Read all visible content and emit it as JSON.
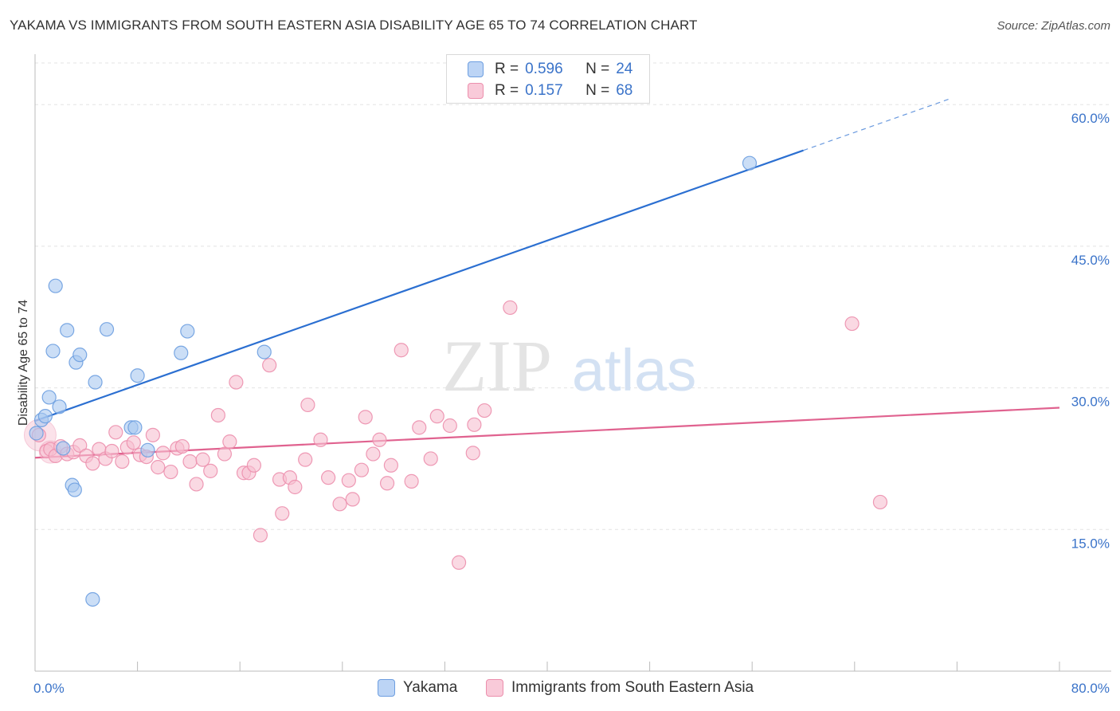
{
  "chart_data": {
    "type": "scatter",
    "title": "YAKAMA VS IMMIGRANTS FROM SOUTH EASTERN ASIA DISABILITY AGE 65 TO 74 CORRELATION CHART",
    "source": "Source: ZipAtlas.com",
    "watermark": {
      "zip": "ZIP",
      "atlas": "atlas"
    },
    "xlabel": "",
    "ylabel": "Disability Age 65 to 74",
    "xlim": [
      0,
      80
    ],
    "ylim": [
      0,
      65
    ],
    "x_tick_labels": [
      "0.0%",
      "80.0%"
    ],
    "y_ticks": [
      15,
      30,
      45,
      60
    ],
    "y_tick_labels": [
      "15.0%",
      "30.0%",
      "45.0%",
      "60.0%"
    ],
    "legend": {
      "series1": {
        "r_label": "R =",
        "r_value": "0.596",
        "n_label": "N =",
        "n_value": "24"
      },
      "series2": {
        "r_label": "R =",
        "r_value": "0.157",
        "n_label": "N =",
        "n_value": "68"
      }
    },
    "series": [
      {
        "name": "Yakama",
        "color": "#a8c8f0",
        "edge": "#6d9ee0",
        "line_color": "#2b6fd1",
        "trend": {
          "x0": 0,
          "y0": 26.5,
          "x1": 80,
          "y1": 64.7,
          "solid_until_x": 60
        },
        "points": [
          [
            0.1,
            25.2
          ],
          [
            0.5,
            26.6
          ],
          [
            0.8,
            27.0
          ],
          [
            1.1,
            29.0
          ],
          [
            1.4,
            33.9
          ],
          [
            1.6,
            40.8
          ],
          [
            1.9,
            28.0
          ],
          [
            2.2,
            23.6
          ],
          [
            2.5,
            36.1
          ],
          [
            2.9,
            19.7
          ],
          [
            3.1,
            19.2
          ],
          [
            3.2,
            32.7
          ],
          [
            3.5,
            33.5
          ],
          [
            4.5,
            7.6
          ],
          [
            4.7,
            30.6
          ],
          [
            5.6,
            36.2
          ],
          [
            7.5,
            25.8
          ],
          [
            7.8,
            25.8
          ],
          [
            8.0,
            31.3
          ],
          [
            8.8,
            23.4
          ],
          [
            11.4,
            33.7
          ],
          [
            11.9,
            36.0
          ],
          [
            17.9,
            33.8
          ],
          [
            55.8,
            53.8
          ]
        ]
      },
      {
        "name": "Immigrants from South Eastern Asia",
        "color": "#f7bfd1",
        "edge": "#ec8fad",
        "line_color": "#e0628f",
        "trend": {
          "x0": 0,
          "y0": 22.6,
          "x1": 80,
          "y1": 27.9
        },
        "points": [
          [
            0.3,
            25.0
          ],
          [
            0.9,
            23.3
          ],
          [
            1.2,
            23.5
          ],
          [
            1.6,
            22.8
          ],
          [
            2.0,
            23.8
          ],
          [
            2.5,
            23.0
          ],
          [
            3.0,
            23.2
          ],
          [
            3.5,
            23.9
          ],
          [
            4.0,
            22.8
          ],
          [
            4.5,
            22.0
          ],
          [
            5.0,
            23.5
          ],
          [
            5.5,
            22.5
          ],
          [
            6.0,
            23.3
          ],
          [
            6.3,
            25.3
          ],
          [
            6.8,
            22.2
          ],
          [
            7.2,
            23.7
          ],
          [
            7.7,
            24.2
          ],
          [
            8.2,
            22.9
          ],
          [
            8.7,
            22.7
          ],
          [
            9.2,
            25.0
          ],
          [
            9.6,
            21.6
          ],
          [
            10.0,
            23.1
          ],
          [
            10.6,
            21.1
          ],
          [
            11.1,
            23.6
          ],
          [
            11.5,
            23.8
          ],
          [
            12.1,
            22.2
          ],
          [
            12.6,
            19.8
          ],
          [
            13.1,
            22.4
          ],
          [
            13.7,
            21.2
          ],
          [
            14.3,
            27.1
          ],
          [
            14.8,
            23.0
          ],
          [
            15.2,
            24.3
          ],
          [
            15.7,
            30.6
          ],
          [
            16.3,
            21.0
          ],
          [
            16.7,
            21.0
          ],
          [
            17.1,
            21.8
          ],
          [
            17.6,
            14.4
          ],
          [
            18.3,
            32.4
          ],
          [
            19.1,
            20.3
          ],
          [
            19.3,
            16.7
          ],
          [
            19.9,
            20.5
          ],
          [
            20.3,
            19.5
          ],
          [
            21.1,
            22.4
          ],
          [
            21.3,
            28.2
          ],
          [
            22.3,
            24.5
          ],
          [
            22.9,
            20.5
          ],
          [
            23.8,
            17.7
          ],
          [
            24.5,
            20.2
          ],
          [
            24.8,
            18.2
          ],
          [
            25.5,
            21.3
          ],
          [
            25.8,
            26.9
          ],
          [
            26.4,
            23.0
          ],
          [
            26.9,
            24.5
          ],
          [
            27.5,
            19.9
          ],
          [
            27.8,
            21.8
          ],
          [
            28.6,
            34.0
          ],
          [
            29.4,
            20.1
          ],
          [
            30.0,
            25.8
          ],
          [
            30.9,
            22.5
          ],
          [
            31.4,
            27.0
          ],
          [
            32.4,
            26.0
          ],
          [
            33.1,
            11.5
          ],
          [
            34.2,
            23.1
          ],
          [
            34.3,
            26.1
          ],
          [
            35.1,
            27.6
          ],
          [
            37.1,
            38.5
          ],
          [
            63.8,
            36.8
          ],
          [
            66.0,
            17.9
          ]
        ]
      }
    ],
    "bottom_legend": [
      "Yakama",
      "Immigrants from South Eastern Asia"
    ]
  }
}
